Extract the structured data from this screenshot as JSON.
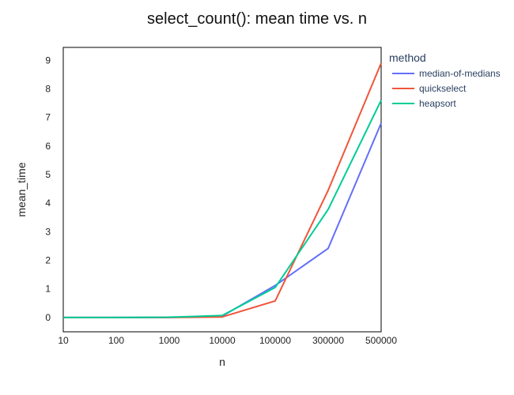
{
  "chart_data": {
    "type": "line",
    "title": "select_count(): mean time vs. n",
    "xlabel": "n",
    "ylabel": "mean_time",
    "categories": [
      "10",
      "100",
      "1000",
      "10000",
      "100000",
      "300000",
      "500000"
    ],
    "ylim": [
      -0.5,
      9.45
    ],
    "yticks": [
      0,
      1,
      2,
      3,
      4,
      5,
      6,
      7,
      8,
      9
    ],
    "grid": false,
    "legend": {
      "title": "method",
      "position": "right"
    },
    "series": [
      {
        "name": "median-of-medians",
        "color": "#636efa",
        "values": [
          0.0,
          0.0,
          0.0,
          0.05,
          1.12,
          2.42,
          6.8
        ]
      },
      {
        "name": "quickselect",
        "color": "#ef553b",
        "values": [
          0.0,
          0.0,
          0.0,
          0.02,
          0.58,
          4.45,
          8.9
        ]
      },
      {
        "name": "heapsort",
        "color": "#00cc96",
        "values": [
          0.0,
          0.0,
          0.01,
          0.07,
          1.05,
          3.78,
          7.6
        ]
      }
    ]
  }
}
